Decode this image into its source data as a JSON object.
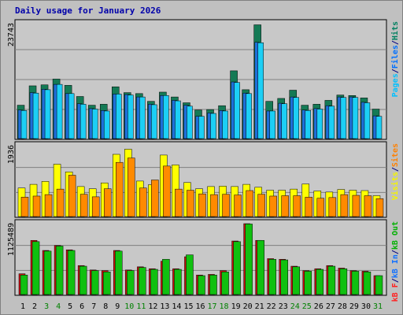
{
  "header": {
    "title": "Daily usage for January 2026"
  },
  "colors": {
    "hits": "#008040",
    "files": "#0080ff",
    "pages": "#00e0ff",
    "visits": "#ffff00",
    "sites": "#ff8000",
    "kb_in": "#00c000",
    "kb_out": "#008000",
    "kbf": "#ff0000",
    "grid": "#808080",
    "weekend": "#008000",
    "weekday": "#000000",
    "panel": "#c0c0c0",
    "chart_bg": "#c8c8c8"
  },
  "chart_data": [
    {
      "type": "bar",
      "title": "Daily usage for January 2026",
      "panel": "hits",
      "ymax_label": "23743",
      "ylim": [
        0,
        23743
      ],
      "legend_labels": [
        "Pages",
        "Files",
        "Hits"
      ],
      "legend_seps": [
        "/",
        "/"
      ],
      "categories": [
        "1",
        "2",
        "3",
        "4",
        "5",
        "6",
        "7",
        "8",
        "9",
        "10",
        "11",
        "12",
        "13",
        "14",
        "15",
        "16",
        "17",
        "18",
        "19",
        "20",
        "21",
        "22",
        "23",
        "24",
        "25",
        "26",
        "27",
        "28",
        "29",
        "30",
        "31"
      ],
      "weekend_days": [
        3,
        4,
        10,
        11,
        17,
        18,
        24,
        25,
        31
      ],
      "series": [
        {
          "name": "Hits",
          "values": [
            6900,
            10900,
            11100,
            12300,
            11000,
            8700,
            6900,
            7100,
            10700,
            9500,
            9300,
            7700,
            9600,
            8600,
            7400,
            5900,
            6000,
            6800,
            14000,
            10100,
            23500,
            7700,
            8300,
            10000,
            6900,
            7100,
            7900,
            9000,
            8900,
            8400,
            6100
          ]
        },
        {
          "name": "Files",
          "values": [
            5900,
            9500,
            10200,
            11200,
            9300,
            7200,
            6200,
            5800,
            9200,
            9100,
            8600,
            7100,
            8900,
            7900,
            6900,
            4600,
            5300,
            5800,
            11700,
            9400,
            19900,
            5700,
            7300,
            8600,
            5900,
            6200,
            6800,
            8600,
            8600,
            7500,
            4700
          ]
        },
        {
          "name": "Pages",
          "values": [
            5800,
            9400,
            10100,
            11200,
            9300,
            7100,
            6100,
            5700,
            9200,
            9000,
            8600,
            7000,
            8900,
            7800,
            6700,
            4600,
            5200,
            5700,
            11600,
            9300,
            19800,
            5700,
            7200,
            8500,
            5800,
            6100,
            6700,
            8500,
            8500,
            7400,
            4600
          ]
        }
      ]
    },
    {
      "type": "bar",
      "panel": "visits",
      "ymax_label": "1936",
      "ylim": [
        0,
        1936
      ],
      "legend_labels": [
        "Visits",
        "Sites"
      ],
      "legend_seps": [
        "/"
      ],
      "categories": [
        "1",
        "2",
        "3",
        "4",
        "5",
        "6",
        "7",
        "8",
        "9",
        "10",
        "11",
        "12",
        "13",
        "14",
        "15",
        "16",
        "17",
        "18",
        "19",
        "20",
        "21",
        "22",
        "23",
        "24",
        "25",
        "26",
        "27",
        "28",
        "29",
        "30",
        "31"
      ],
      "series": [
        {
          "name": "Visits",
          "values": [
            780,
            880,
            960,
            1430,
            1220,
            820,
            760,
            920,
            1700,
            1840,
            970,
            870,
            1680,
            1410,
            930,
            760,
            820,
            830,
            820,
            880,
            800,
            720,
            720,
            750,
            890,
            700,
            670,
            740,
            720,
            710,
            570
          ]
        },
        {
          "name": "Sites",
          "values": [
            530,
            560,
            600,
            750,
            1130,
            610,
            540,
            760,
            1480,
            1600,
            780,
            1000,
            1380,
            750,
            720,
            620,
            600,
            610,
            590,
            710,
            610,
            560,
            570,
            570,
            530,
            500,
            520,
            600,
            580,
            570,
            490
          ]
        }
      ]
    },
    {
      "type": "bar",
      "panel": "kbytes",
      "ymax_label": "1125489",
      "ylim": [
        0,
        1125489
      ],
      "legend_labels": [
        "kB F",
        "kB In",
        "kB Out"
      ],
      "legend_seps": [
        "/",
        "/"
      ],
      "categories": [
        "1",
        "2",
        "3",
        "4",
        "5",
        "6",
        "7",
        "8",
        "9",
        "10",
        "11",
        "12",
        "13",
        "14",
        "15",
        "16",
        "17",
        "18",
        "19",
        "20",
        "21",
        "22",
        "23",
        "24",
        "25",
        "26",
        "27",
        "28",
        "29",
        "30",
        "31"
      ],
      "series": [
        {
          "name": "kB F",
          "values": [
            330000,
            860000,
            700000,
            780000,
            710000,
            460000,
            390000,
            380000,
            700000,
            390000,
            440000,
            410000,
            530000,
            410000,
            600000,
            310000,
            320000,
            380000,
            850000,
            1125489,
            860000,
            570000,
            560000,
            450000,
            380000,
            410000,
            460000,
            420000,
            380000,
            370000,
            300000
          ]
        },
        {
          "name": "kB In",
          "values": [
            310000,
            840000,
            690000,
            770000,
            700000,
            450000,
            380000,
            360000,
            690000,
            380000,
            430000,
            400000,
            560000,
            400000,
            630000,
            300000,
            310000,
            360000,
            840000,
            1120000,
            860000,
            560000,
            550000,
            440000,
            370000,
            400000,
            450000,
            410000,
            370000,
            360000,
            300000
          ]
        }
      ]
    }
  ]
}
